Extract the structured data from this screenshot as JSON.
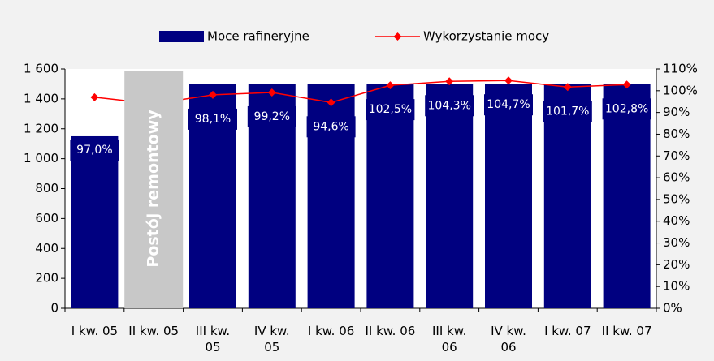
{
  "chart_data": {
    "type": "bar_line",
    "categories": [
      "I kw. 05",
      "II kw. 05",
      "III kw. 05",
      "IV kw. 05",
      "I kw. 06",
      "II kw. 06",
      "III kw. 06",
      "IV kw. 06",
      "I kw. 07",
      "II kw. 07"
    ],
    "series": [
      {
        "name": "Moce rafineryjne",
        "color": "#000080",
        "type": "bar",
        "values": [
          1150,
          null,
          1500,
          1500,
          1500,
          1500,
          1500,
          1500,
          1500,
          1500
        ]
      },
      {
        "name": "Wykorzystanie mocy",
        "color": "#ff0000",
        "type": "line",
        "axis": "y2",
        "values": [
          97.0,
          94,
          98.1,
          99.2,
          94.6,
          102.5,
          104.3,
          104.7,
          101.7,
          102.8
        ],
        "value_labels": [
          "97,0%",
          null,
          "98,1%",
          "99,2%",
          "94,6%",
          "102,5%",
          "104,3%",
          "104,7%",
          "101,7%",
          "102,8%"
        ]
      }
    ],
    "annotation": "Postój remontowy",
    "ylim": [
      0,
      1600
    ],
    "yticks": [
      0,
      200,
      400,
      600,
      800,
      {
        "value": 1000,
        "label": "1 000"
      },
      {
        "value": 1200,
        "label": "1 200"
      },
      {
        "value": 1400,
        "label": "1 400"
      },
      {
        "value": 1600,
        "label": "1 600"
      }
    ],
    "y2lim": [
      0,
      110
    ],
    "y2ticks": [
      {
        "value": 0,
        "label": "0%"
      },
      {
        "value": 10,
        "label": "10%"
      },
      {
        "value": 20,
        "label": "20%"
      },
      {
        "value": 30,
        "label": "30%"
      },
      {
        "value": 40,
        "label": "40%"
      },
      {
        "value": 50,
        "label": "50%"
      },
      {
        "value": 60,
        "label": "60%"
      },
      {
        "value": 70,
        "label": "70%"
      },
      {
        "value": 80,
        "label": "80%"
      },
      {
        "value": 90,
        "label": "90%"
      },
      {
        "value": 100,
        "label": "100%"
      },
      {
        "value": 110,
        "label": "110%"
      }
    ],
    "legend": "top"
  }
}
